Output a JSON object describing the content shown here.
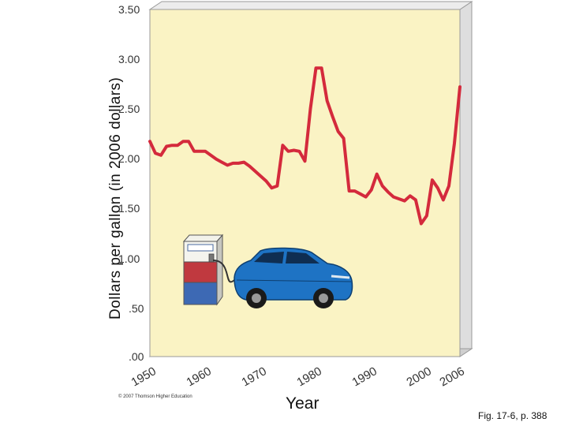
{
  "chart_data": {
    "type": "line",
    "ylabel": "Dollars per gallon (in 2006 dollars)",
    "xlabel": "Year",
    "ylim": [
      0,
      3.5
    ],
    "xlim": [
      1950,
      2006
    ],
    "yticks": [
      "3.50",
      "3.00",
      "2.50",
      "2.00",
      "1.50",
      "1.00",
      ".50",
      ".00"
    ],
    "xticks": [
      "1950",
      "1960",
      "1970",
      "1980",
      "1990",
      "2000",
      "2006"
    ],
    "series": [
      {
        "color": "#d42a3c",
        "x": [
          1950,
          1951,
          1952,
          1953,
          1954,
          1955,
          1956,
          1957,
          1958,
          1959,
          1960,
          1961,
          1962,
          1963,
          1964,
          1965,
          1966,
          1967,
          1968,
          1969,
          1970,
          1971,
          1972,
          1973,
          1974,
          1975,
          1976,
          1977,
          1978,
          1979,
          1980,
          1981,
          1982,
          1983,
          1984,
          1985,
          1986,
          1987,
          1988,
          1989,
          1990,
          1991,
          1992,
          1993,
          1994,
          1995,
          1996,
          1997,
          1998,
          1999,
          2000,
          2001,
          2002,
          2003,
          2004,
          2005,
          2006
        ],
        "y": [
          2.17,
          2.05,
          2.03,
          2.12,
          2.13,
          2.13,
          2.17,
          2.17,
          2.07,
          2.07,
          2.07,
          2.03,
          1.99,
          1.96,
          1.93,
          1.95,
          1.95,
          1.96,
          1.92,
          1.87,
          1.82,
          1.77,
          1.7,
          1.72,
          2.13,
          2.07,
          2.08,
          2.07,
          1.97,
          2.5,
          2.91,
          2.91,
          2.58,
          2.42,
          2.27,
          2.2,
          1.67,
          1.67,
          1.64,
          1.61,
          1.68,
          1.84,
          1.72,
          1.66,
          1.61,
          1.59,
          1.57,
          1.62,
          1.58,
          1.34,
          1.42,
          1.78,
          1.7,
          1.58,
          1.72,
          2.15,
          2.72
        ]
      }
    ]
  },
  "copyright": "© 2007 Thomson Higher Education",
  "figure_ref": "Fig. 17-6, p. 388",
  "colors": {
    "plot_face": "#faf3c4",
    "plot_side": "#dedede",
    "plot_bottom": "#cfcfcf",
    "line": "#d42a3c"
  },
  "illustration": {
    "icons": [
      "gas-pump-icon",
      "car-icon"
    ]
  }
}
